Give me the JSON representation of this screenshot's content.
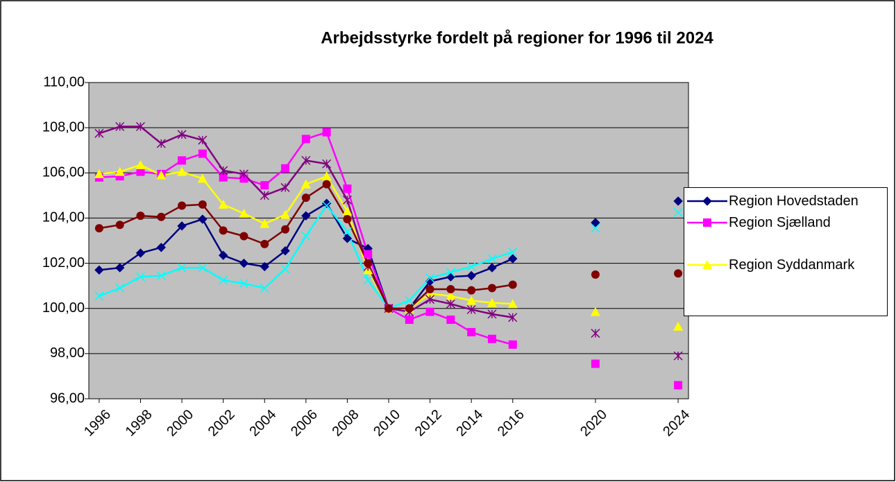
{
  "chart_data": {
    "type": "line",
    "title": "Arbejdsstyrke fordelt på regioner for 1996 til 2024",
    "x": [
      1996,
      1997,
      1998,
      1999,
      2000,
      2001,
      2002,
      2003,
      2004,
      2005,
      2006,
      2007,
      2008,
      2009,
      2010,
      2011,
      2012,
      2013,
      2014,
      2015,
      2016,
      2017,
      2018,
      2019,
      2020,
      2021,
      2022,
      2023,
      2024
    ],
    "xlim": [
      1995.5,
      2024.5
    ],
    "xticks": [
      1996,
      1998,
      2000,
      2002,
      2004,
      2006,
      2008,
      2010,
      2012,
      2014,
      2016,
      2020,
      2024
    ],
    "ylim": [
      96,
      110
    ],
    "yticks": [
      {
        "value": 96,
        "label": "96,00"
      },
      {
        "value": 98,
        "label": "98,00"
      },
      {
        "value": 100,
        "label": "100,00"
      },
      {
        "value": 102,
        "label": "102,00"
      },
      {
        "value": 104,
        "label": "104,00"
      },
      {
        "value": 106,
        "label": "106,00"
      },
      {
        "value": 108,
        "label": "108,00"
      },
      {
        "value": 110,
        "label": "110,00"
      }
    ],
    "grid": true,
    "legend": "right",
    "plot_background": "#c0c0c0",
    "series": [
      {
        "name": "Region Hovedstaden",
        "color": "#000080",
        "marker": "diamond",
        "values": [
          101.7,
          101.8,
          102.45,
          102.7,
          103.65,
          103.95,
          102.35,
          102.0,
          101.85,
          102.55,
          104.1,
          104.65,
          103.1,
          102.65,
          100.0,
          100.0,
          101.2,
          101.4,
          101.45,
          101.8,
          102.2,
          null,
          null,
          null,
          103.8,
          null,
          null,
          null,
          104.75
        ]
      },
      {
        "name": "Region Sjælland",
        "color": "#ff00ff",
        "marker": "square",
        "values": [
          105.8,
          105.85,
          106.05,
          105.95,
          106.55,
          106.85,
          105.8,
          105.75,
          105.45,
          106.2,
          107.5,
          107.8,
          105.3,
          102.4,
          100.0,
          99.5,
          99.85,
          99.5,
          98.95,
          98.65,
          98.4,
          null,
          null,
          null,
          97.55,
          null,
          null,
          null,
          96.6
        ]
      },
      {
        "name": "Region Syddanmark",
        "color": "#ffff00",
        "marker": "triangle",
        "values": [
          105.95,
          106.05,
          106.35,
          105.9,
          106.05,
          105.75,
          104.6,
          104.2,
          103.75,
          104.15,
          105.5,
          105.85,
          104.3,
          101.7,
          100.0,
          100.0,
          100.65,
          100.55,
          100.35,
          100.25,
          100.2,
          null,
          null,
          null,
          99.85,
          null,
          null,
          null,
          99.2
        ]
      },
      {
        "color": "#00ffff",
        "marker": "x",
        "values": [
          100.55,
          100.9,
          101.4,
          101.45,
          101.8,
          101.8,
          101.25,
          101.1,
          100.9,
          101.75,
          103.2,
          104.55,
          103.4,
          101.25,
          100.0,
          100.35,
          101.35,
          101.6,
          101.85,
          102.2,
          102.5,
          null,
          null,
          null,
          103.55,
          null,
          null,
          null,
          104.25
        ]
      },
      {
        "color": "#800080",
        "marker": "asterisk",
        "values": [
          107.75,
          108.05,
          108.05,
          107.3,
          107.7,
          107.45,
          106.1,
          105.95,
          105.0,
          105.35,
          106.55,
          106.4,
          104.8,
          101.85,
          100.0,
          99.85,
          100.4,
          100.2,
          99.95,
          99.75,
          99.6,
          null,
          null,
          null,
          98.9,
          null,
          null,
          null,
          97.9
        ]
      },
      {
        "color": "#800000",
        "marker": "circle",
        "values": [
          103.55,
          103.7,
          104.1,
          104.05,
          104.55,
          104.6,
          103.45,
          103.2,
          102.85,
          103.5,
          104.9,
          105.5,
          103.95,
          102.0,
          100.0,
          100.0,
          100.85,
          100.85,
          100.8,
          100.9,
          101.05,
          null,
          null,
          null,
          101.5,
          null,
          null,
          null,
          101.55
        ]
      }
    ]
  }
}
